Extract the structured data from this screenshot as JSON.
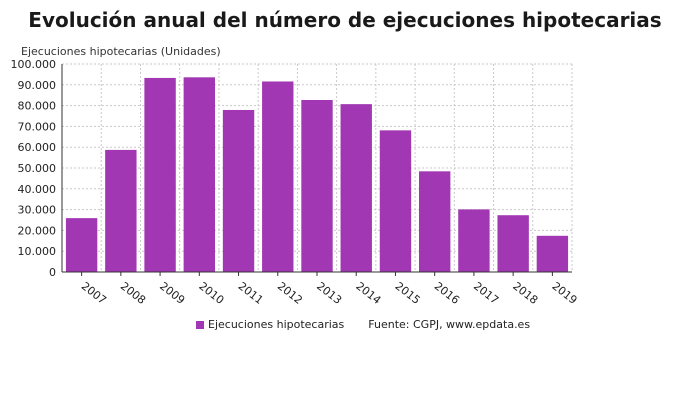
{
  "colors": {
    "bar": "#a137b2",
    "grid": "#c9c9c9",
    "axis": "#333333"
  },
  "chart_data": {
    "type": "bar",
    "title": "Evolución anual del número de ejecuciones hipotecarias",
    "ylabel": "Ejecuciones hipotecarias (Unidades)",
    "xlabel": "",
    "categories": [
      "2007",
      "2008",
      "2009",
      "2010",
      "2011",
      "2012",
      "2013",
      "2014",
      "2015",
      "2016",
      "2017",
      "2018",
      "2019"
    ],
    "series": [
      {
        "name": "Ejecuciones hipotecarias",
        "values": [
          25900,
          58700,
          93300,
          93600,
          77900,
          91600,
          82700,
          80700,
          68100,
          48400,
          30100,
          27300,
          17400
        ]
      }
    ],
    "ylim": [
      0,
      100000
    ],
    "yticks": [
      0,
      10000,
      20000,
      30000,
      40000,
      50000,
      60000,
      70000,
      80000,
      90000,
      100000
    ],
    "ytick_labels": [
      "0",
      "10.000",
      "20.000",
      "30.000",
      "40.000",
      "50.000",
      "60.000",
      "70.000",
      "80.000",
      "90.000",
      "100.000"
    ],
    "grid": true,
    "legend_position": "bottom",
    "source": "Fuente: CGPJ, www.epdata.es"
  }
}
